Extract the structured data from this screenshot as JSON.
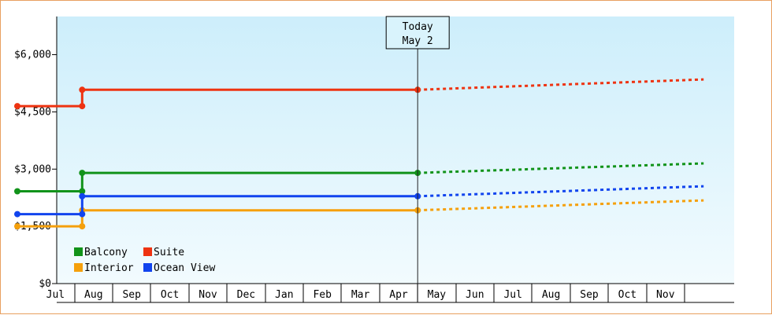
{
  "chart_data": {
    "type": "line",
    "title": "",
    "xlabel": "",
    "ylabel": "",
    "ylim": [
      0,
      7000
    ],
    "y_ticks": [
      "$0",
      "$1,500",
      "$3,000",
      "$4,500",
      "$6,000"
    ],
    "y_tick_values": [
      0,
      1500,
      3000,
      4500,
      6000
    ],
    "x_months": [
      "Jul",
      "Aug",
      "Sep",
      "Oct",
      "Nov",
      "Dec",
      "Jan",
      "Feb",
      "Mar",
      "Apr",
      "May",
      "Jun",
      "Jul",
      "Aug",
      "Sep",
      "Oct",
      "Nov"
    ],
    "x_range": [
      0,
      18
    ],
    "today": {
      "line1": "Today",
      "line2": "May 2",
      "x": 10.5
    },
    "grid": false,
    "legend_position": "bottom-left",
    "series": [
      {
        "name": "Balcony",
        "color": "#11931a",
        "points": [
          [
            0,
            2420
          ],
          [
            1.7,
            2420
          ],
          [
            1.7,
            2900
          ],
          [
            10.5,
            2900
          ]
        ],
        "forecast": [
          [
            10.5,
            2900
          ],
          [
            18,
            3150
          ]
        ]
      },
      {
        "name": "Suite",
        "color": "#ee3311",
        "points": [
          [
            0,
            4650
          ],
          [
            1.7,
            4650
          ],
          [
            1.7,
            5080
          ],
          [
            10.5,
            5080
          ]
        ],
        "forecast": [
          [
            10.5,
            5080
          ],
          [
            18,
            5350
          ]
        ]
      },
      {
        "name": "Interior",
        "color": "#f5a00c",
        "points": [
          [
            0,
            1500
          ],
          [
            1.7,
            1500
          ],
          [
            1.7,
            1920
          ],
          [
            10.5,
            1920
          ]
        ],
        "forecast": [
          [
            10.5,
            1920
          ],
          [
            18,
            2180
          ]
        ]
      },
      {
        "name": "Ocean View",
        "color": "#1144ee",
        "points": [
          [
            0,
            1820
          ],
          [
            1.7,
            1820
          ],
          [
            1.7,
            2290
          ],
          [
            10.5,
            2290
          ]
        ],
        "forecast": [
          [
            10.5,
            2290
          ],
          [
            18,
            2550
          ]
        ]
      }
    ]
  }
}
